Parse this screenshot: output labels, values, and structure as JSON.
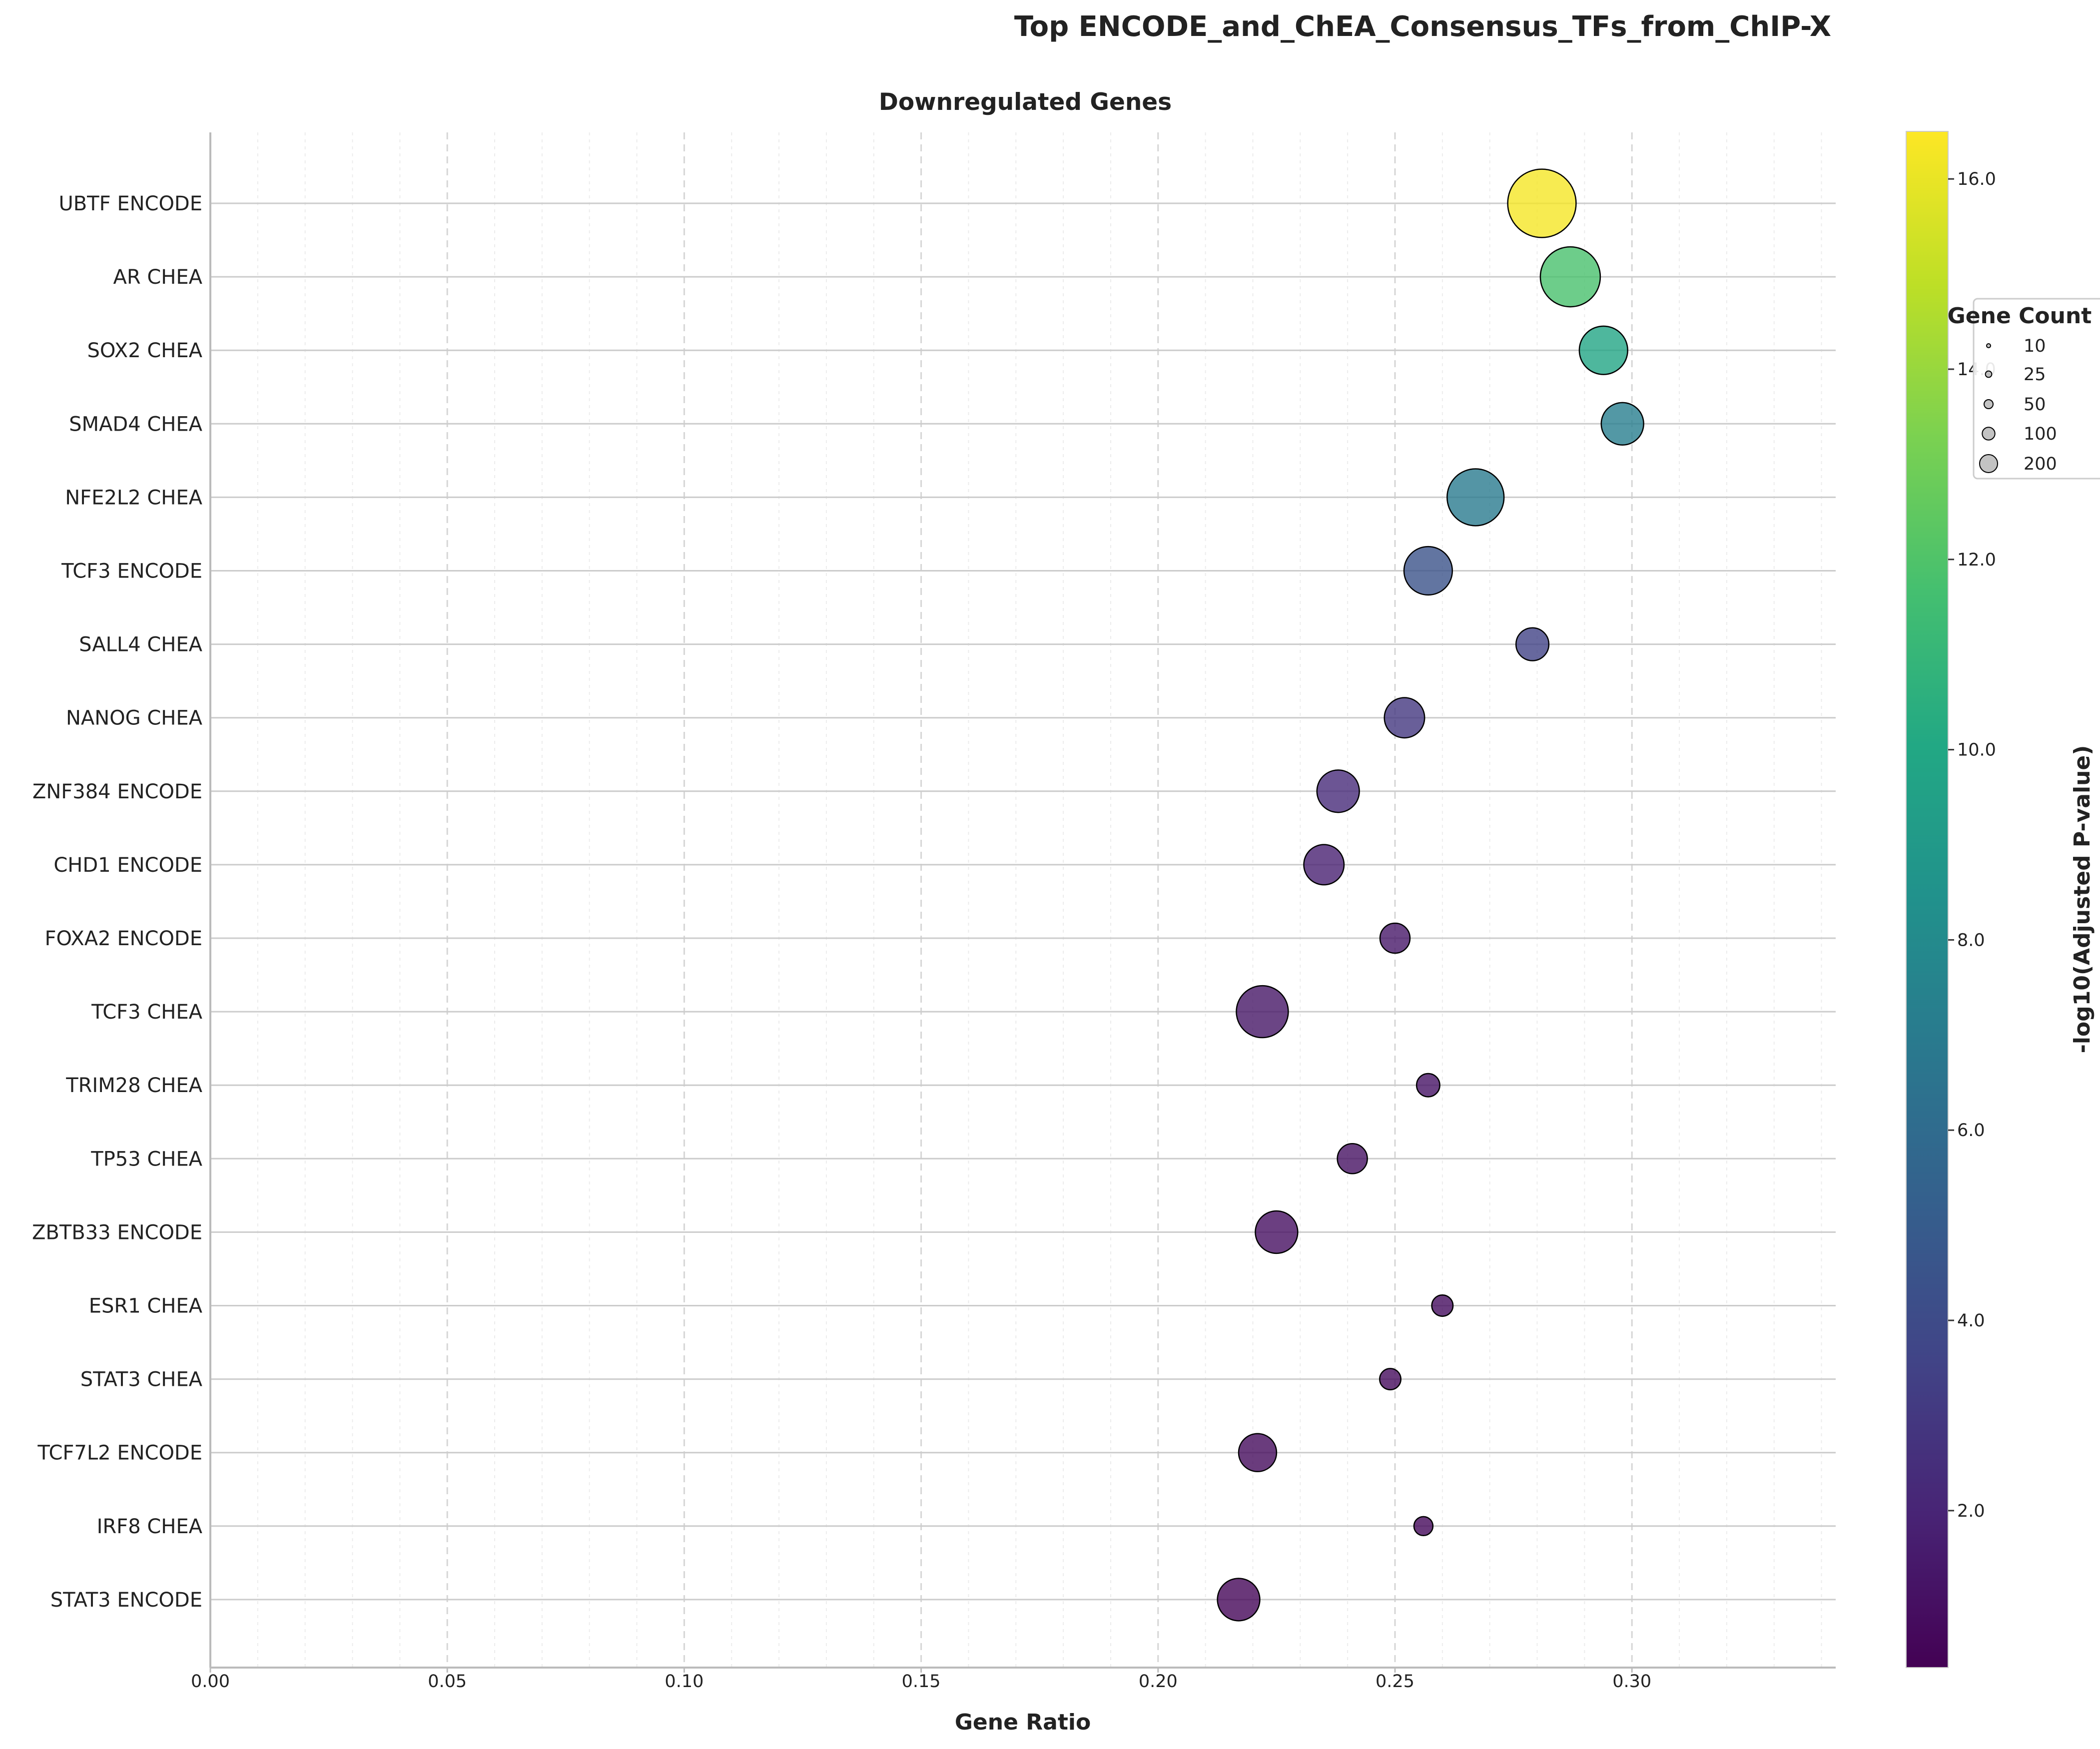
{
  "chart_data": {
    "type": "scatter",
    "title": "Top ENCODE_and_ChEA_Consensus_TFs_from_ChIP-X",
    "subtitle": "Downregulated Genes",
    "xlabel": "Gene Ratio",
    "ylabel": "",
    "xlim": [
      0.0,
      0.343
    ],
    "x_ticks": [
      "0.00",
      "0.05",
      "0.10",
      "0.15",
      "0.20",
      "0.25",
      "0.30"
    ],
    "x_tick_values": [
      0.0,
      0.05,
      0.1,
      0.15,
      0.2,
      0.25,
      0.3
    ],
    "grid": true,
    "colormap": "viridis",
    "colorbar": {
      "label": "-log10(Adjusted P-value)",
      "range": [
        0.35,
        16.5
      ],
      "ticks": [
        "2.0",
        "4.0",
        "6.0",
        "8.0",
        "10.0",
        "12.0",
        "14.0",
        "16.0"
      ],
      "tick_values": [
        2,
        4,
        6,
        8,
        10,
        12,
        14,
        16
      ]
    },
    "size_legend": {
      "title": "Gene Count",
      "placement": "right",
      "entries": [
        "10",
        "25",
        "50",
        "100",
        "200"
      ],
      "values": [
        10,
        25,
        50,
        100,
        200
      ]
    },
    "categories": [
      "UBTF ENCODE",
      "AR CHEA",
      "SOX2 CHEA",
      "SMAD4 CHEA",
      "NFE2L2 CHEA",
      "TCF3 ENCODE",
      "SALL4 CHEA",
      "NANOG CHEA",
      "ZNF384 ENCODE",
      "CHD1 ENCODE",
      "FOXA2 ENCODE",
      "TCF3 CHEA",
      "TRIM28 CHEA",
      "TP53 CHEA",
      "ZBTB33 ENCODE",
      "ESR1 CHEA",
      "STAT3 CHEA",
      "TCF7L2 ENCODE",
      "IRF8 CHEA",
      "STAT3 ENCODE"
    ],
    "series": [
      {
        "x": [
          0.281,
          0.287,
          0.294,
          0.298,
          0.267,
          0.257,
          0.279,
          0.252,
          0.238,
          0.235,
          0.25,
          0.222,
          0.257,
          0.241,
          0.225,
          0.26,
          0.249,
          0.221,
          0.256,
          0.217
        ],
        "gene_count": [
          260,
          200,
          130,
          100,
          180,
          130,
          60,
          90,
          100,
          90,
          50,
          150,
          30,
          50,
          100,
          25,
          25,
          80,
          20,
          100
        ],
        "neg_log10_padj": [
          16.3,
          11.8,
          9.8,
          7.2,
          7.0,
          4.4,
          3.5,
          2.9,
          2.3,
          1.8,
          1.4,
          1.3,
          1.2,
          1.1,
          1.0,
          0.9,
          0.8,
          0.8,
          0.7,
          0.6
        ]
      }
    ]
  }
}
